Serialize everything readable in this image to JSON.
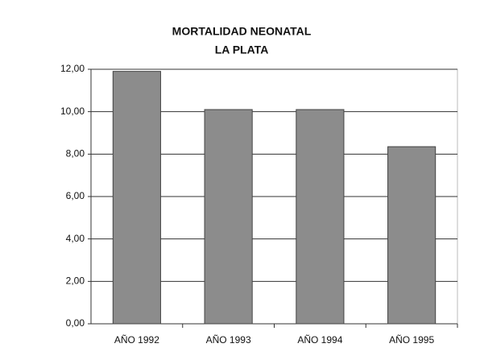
{
  "chart_data": {
    "type": "bar",
    "title": "MORTALIDAD NEONATAL",
    "subtitle": "LA PLATA",
    "categories": [
      "AÑO 1992",
      "AÑO 1993",
      "AÑO 1994",
      "AÑO 1995"
    ],
    "values": [
      11.9,
      10.1,
      10.1,
      8.35
    ],
    "color": "#8c8c8c",
    "ylim": [
      0,
      12
    ],
    "yticks": [
      {
        "value": 0,
        "label": "0,00"
      },
      {
        "value": 2,
        "label": "2,00"
      },
      {
        "value": 4,
        "label": "4,00"
      },
      {
        "value": 6,
        "label": "6,00"
      },
      {
        "value": 8,
        "label": "8,00"
      },
      {
        "value": 10,
        "label": "10,00"
      },
      {
        "value": 12,
        "label": "12,00"
      }
    ],
    "grid": true
  }
}
